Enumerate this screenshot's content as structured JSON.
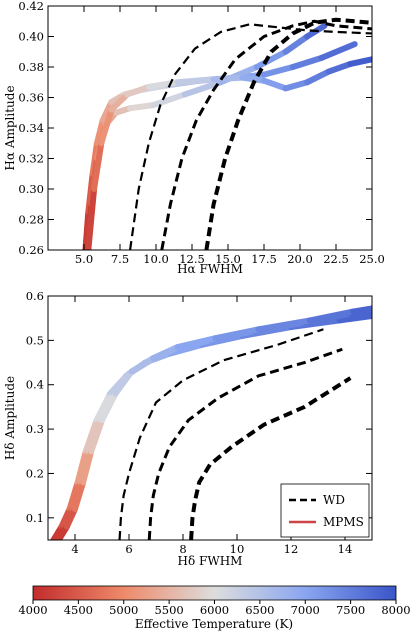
{
  "chart_data": [
    {
      "type": "line",
      "xlabel": "Hα FWHM",
      "ylabel": "Hα Amplitude",
      "xlim": [
        2.5,
        25.0
      ],
      "ylim": [
        0.26,
        0.42
      ],
      "xticks": [
        "5.0",
        "7.5",
        "10.0",
        "12.5",
        "15.0",
        "17.5",
        "20.0",
        "22.5",
        "25.0"
      ],
      "xtick_values": [
        5.0,
        7.5,
        10.0,
        12.5,
        15.0,
        17.5,
        20.0,
        22.5,
        25.0
      ],
      "yticks": [
        "0.26",
        "0.28",
        "0.30",
        "0.32",
        "0.34",
        "0.36",
        "0.38",
        "0.40",
        "0.42"
      ],
      "ytick_values": [
        0.26,
        0.28,
        0.3,
        0.32,
        0.34,
        0.36,
        0.38,
        0.4,
        0.42
      ],
      "wd_tracks": [
        {
          "x": [
            8.2,
            8.8,
            9.5,
            10.3,
            11.3,
            12.7,
            14.5,
            16.5,
            18.5,
            20.5,
            22.5,
            25.0
          ],
          "y": [
            0.26,
            0.3,
            0.33,
            0.355,
            0.375,
            0.392,
            0.403,
            0.408,
            0.406,
            0.404,
            0.403,
            0.402
          ]
        },
        {
          "x": [
            10.4,
            11.0,
            11.8,
            12.8,
            14.0,
            15.5,
            17.5,
            19.5,
            21.0,
            22.5,
            25.0
          ],
          "y": [
            0.26,
            0.29,
            0.32,
            0.345,
            0.365,
            0.385,
            0.4,
            0.407,
            0.41,
            0.407,
            0.405
          ]
        },
        {
          "x": [
            13.5,
            14.0,
            14.8,
            15.7,
            16.8,
            18.0,
            19.5,
            21.0,
            22.5,
            25.0
          ],
          "y": [
            0.26,
            0.29,
            0.32,
            0.345,
            0.37,
            0.39,
            0.402,
            0.409,
            0.411,
            0.409
          ]
        }
      ],
      "mpms_tracks": [
        {
          "x": [
            5.1,
            5.3,
            5.6,
            5.9,
            6.3,
            6.9,
            7.8,
            9.0,
            10.8,
            13.0,
            15.5,
            17.5,
            19.5,
            21.5,
            23.8
          ],
          "y": [
            0.26,
            0.285,
            0.31,
            0.33,
            0.345,
            0.357,
            0.362,
            0.365,
            0.368,
            0.371,
            0.373,
            0.375,
            0.38,
            0.386,
            0.395
          ],
          "t": [
            4000,
            4300,
            4700,
            5000,
            5200,
            5500,
            5800,
            6000,
            6300,
            6600,
            6900,
            7100,
            7400,
            7600,
            7800
          ]
        },
        {
          "x": [
            5.2,
            5.5,
            5.9,
            6.5,
            7.2,
            8.2,
            9.8,
            12.0,
            14.5,
            17.0,
            19.0,
            20.5,
            21.7
          ],
          "y": [
            0.26,
            0.29,
            0.32,
            0.342,
            0.35,
            0.353,
            0.355,
            0.362,
            0.37,
            0.38,
            0.39,
            0.4,
            0.407
          ],
          "t": [
            4000,
            4400,
            4800,
            5200,
            5500,
            5800,
            6000,
            6300,
            6600,
            7000,
            7300,
            7600,
            7900
          ]
        },
        {
          "x": [
            5.3,
            5.7,
            6.2,
            6.9,
            8.0,
            9.5,
            11.5,
            14.0,
            16.0,
            17.5,
            19.0,
            20.5,
            22.0,
            23.5,
            25.0
          ],
          "y": [
            0.26,
            0.3,
            0.33,
            0.352,
            0.362,
            0.367,
            0.37,
            0.372,
            0.373,
            0.371,
            0.366,
            0.37,
            0.377,
            0.382,
            0.385
          ],
          "t": [
            4000,
            4500,
            4900,
            5300,
            5600,
            5900,
            6200,
            6500,
            6800,
            7000,
            7200,
            7400,
            7600,
            7800,
            8000
          ]
        }
      ]
    },
    {
      "type": "line",
      "xlabel": "Hδ FWHM",
      "ylabel": "Hδ Amplitude",
      "xlim": [
        3.0,
        15.0
      ],
      "ylim": [
        0.05,
        0.6
      ],
      "xticks": [
        "4",
        "6",
        "8",
        "10",
        "12",
        "14"
      ],
      "xtick_values": [
        4,
        6,
        8,
        10,
        12,
        14
      ],
      "yticks": [
        "0.1",
        "0.2",
        "0.3",
        "0.4",
        "0.5",
        "0.6"
      ],
      "ytick_values": [
        0.1,
        0.2,
        0.3,
        0.4,
        0.5,
        0.6
      ],
      "wd_tracks": [
        {
          "x": [
            5.65,
            5.7,
            5.8,
            6.0,
            6.4,
            7.0,
            8.0,
            9.5,
            11.5,
            13.2
          ],
          "y": [
            0.05,
            0.1,
            0.15,
            0.2,
            0.28,
            0.36,
            0.41,
            0.455,
            0.49,
            0.525
          ]
        },
        {
          "x": [
            6.75,
            6.8,
            6.9,
            7.1,
            7.5,
            8.2,
            9.3,
            10.8,
            12.5,
            13.9
          ],
          "y": [
            0.05,
            0.1,
            0.15,
            0.2,
            0.26,
            0.32,
            0.37,
            0.42,
            0.45,
            0.48
          ]
        },
        {
          "x": [
            8.3,
            8.35,
            8.45,
            8.6,
            9.0,
            9.8,
            11.0,
            12.5,
            14.2
          ],
          "y": [
            0.05,
            0.1,
            0.14,
            0.18,
            0.22,
            0.26,
            0.31,
            0.35,
            0.415
          ]
        }
      ],
      "mpms_tracks": [
        {
          "x": [
            3.2,
            3.5,
            3.8,
            4.1,
            4.4,
            4.8,
            5.3,
            5.9,
            6.6,
            7.5,
            8.7,
            10.2,
            12.0,
            13.8,
            15.0
          ],
          "y": [
            0.05,
            0.08,
            0.12,
            0.18,
            0.25,
            0.32,
            0.38,
            0.42,
            0.45,
            0.47,
            0.49,
            0.51,
            0.53,
            0.545,
            0.555
          ],
          "t": [
            4000,
            4300,
            4600,
            5000,
            5500,
            5900,
            6200,
            6500,
            6700,
            6900,
            7100,
            7300,
            7500,
            7700,
            7900
          ]
        },
        {
          "x": [
            3.3,
            3.6,
            3.9,
            4.2,
            4.5,
            4.9,
            5.4,
            6.0,
            6.8,
            7.7,
            9.0,
            10.6,
            12.5,
            14.2,
            15.0
          ],
          "y": [
            0.05,
            0.08,
            0.12,
            0.18,
            0.25,
            0.32,
            0.38,
            0.425,
            0.455,
            0.48,
            0.5,
            0.52,
            0.54,
            0.56,
            0.565
          ],
          "t": [
            4000,
            4300,
            4600,
            5000,
            5500,
            5900,
            6200,
            6500,
            6700,
            6900,
            7100,
            7300,
            7500,
            7700,
            7900
          ]
        },
        {
          "x": [
            3.4,
            3.7,
            4.0,
            4.3,
            4.6,
            5.0,
            5.5,
            6.1,
            6.9,
            7.8,
            9.2,
            10.8,
            12.7,
            14.3,
            15.0
          ],
          "y": [
            0.05,
            0.08,
            0.12,
            0.18,
            0.25,
            0.32,
            0.38,
            0.43,
            0.46,
            0.485,
            0.505,
            0.525,
            0.545,
            0.565,
            0.572
          ],
          "t": [
            4000,
            4300,
            4600,
            5000,
            5500,
            5900,
            6200,
            6500,
            6700,
            6900,
            7100,
            7300,
            7500,
            7700,
            7900
          ]
        }
      ],
      "legend": {
        "position": "lower right",
        "entries": [
          {
            "label": "WD",
            "style": "dashed",
            "color": "#000000"
          },
          {
            "label": "MPMS",
            "style": "solid",
            "color": "#cc4444"
          }
        ]
      }
    }
  ],
  "colorbar": {
    "label": "Effective Temperature (K)",
    "min": 4000,
    "max": 8000,
    "ticks": [
      "4000",
      "4500",
      "5000",
      "5500",
      "6000",
      "6500",
      "7000",
      "7500",
      "8000"
    ],
    "tick_values": [
      4000,
      4500,
      5000,
      5500,
      6000,
      6500,
      7000,
      7500,
      8000
    ],
    "colormap": "coolwarm_r",
    "color_low": "#c22c2c",
    "color_mid": "#dddddd",
    "color_high": "#3a55c8"
  }
}
